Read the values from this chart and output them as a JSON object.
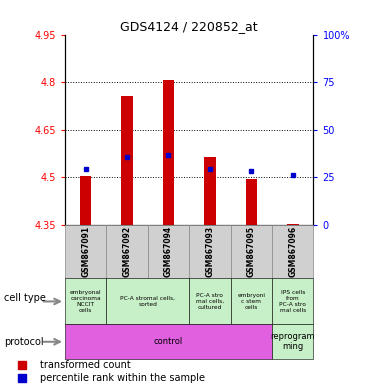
{
  "title": "GDS4124 / 220852_at",
  "samples": [
    "GSM867091",
    "GSM867092",
    "GSM867094",
    "GSM867093",
    "GSM867095",
    "GSM867096"
  ],
  "transformed_count": [
    4.502,
    4.755,
    4.805,
    4.565,
    4.495,
    4.353
  ],
  "bar_bottom": 4.35,
  "percentile_y": [
    4.525,
    4.565,
    4.57,
    4.525,
    4.52,
    4.508
  ],
  "ylim_left": [
    4.35,
    4.95
  ],
  "ylim_right": [
    0,
    100
  ],
  "yticks_left": [
    4.35,
    4.5,
    4.65,
    4.8,
    4.95
  ],
  "yticks_right": [
    0,
    25,
    50,
    75,
    100
  ],
  "ytick_labels_left": [
    "4.35",
    "4.5",
    "4.65",
    "4.8",
    "4.95"
  ],
  "ytick_labels_right": [
    "0",
    "25",
    "50",
    "75",
    "100%"
  ],
  "hlines": [
    4.5,
    4.65,
    4.8
  ],
  "bar_color": "#cc0000",
  "marker_color": "#0000cc",
  "bg_color": "#d0d0d0",
  "cell_type_data": [
    [
      0,
      1,
      "embryonal\ncarcinoma\nNCCIT\ncells",
      "#c8f0c8"
    ],
    [
      1,
      3,
      "PC-A stromal cells,\nsorted",
      "#c8f0c8"
    ],
    [
      3,
      4,
      "PC-A stro\nmal cells,\ncultured",
      "#c8f0c8"
    ],
    [
      4,
      5,
      "embryoni\nc stem\ncells",
      "#c8f0c8"
    ],
    [
      5,
      6,
      "IPS cells\nfrom\nPC-A stro\nmal cells",
      "#c8f0c8"
    ]
  ],
  "protocol_data": [
    [
      0,
      5,
      "control",
      "#e060e0"
    ],
    [
      5,
      6,
      "reprogram\nming",
      "#c8f0c8"
    ]
  ],
  "legend_items": [
    {
      "color": "#cc0000",
      "label": "transformed count"
    },
    {
      "color": "#0000cc",
      "label": "percentile rank within the sample"
    }
  ]
}
